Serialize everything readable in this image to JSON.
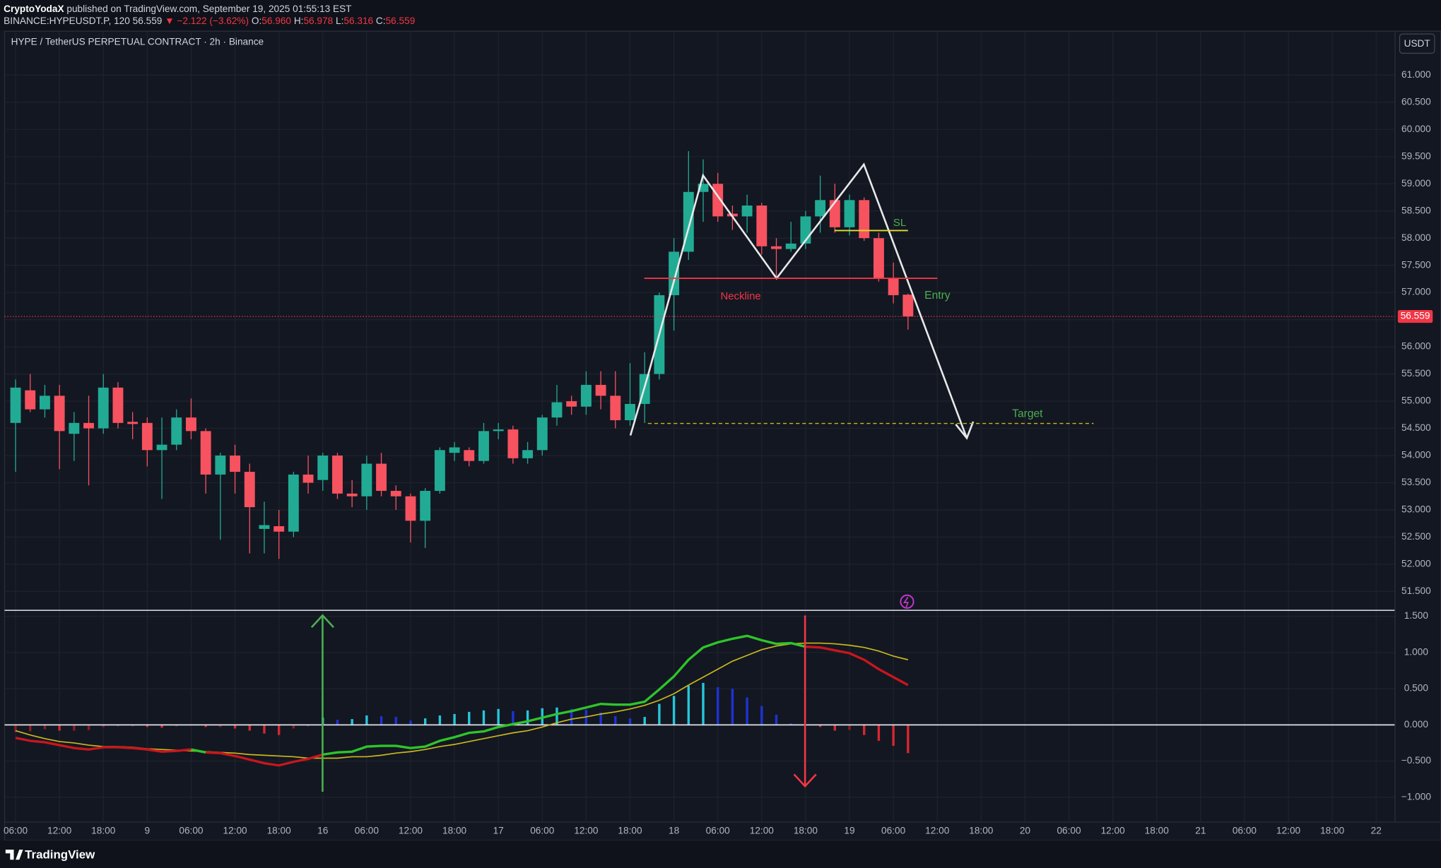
{
  "header": {
    "author": "CryptoYodaX",
    "published": "published on TradingView.com, September 19, 2025 01:55:13 EST",
    "symbol": "BINANCE:HYPEUSDT.P, 120",
    "last": "56.559",
    "change": "▼ −2.122 (−3.62%)",
    "ohlc": [
      {
        "label": "O:",
        "value": "56.960"
      },
      {
        "label": "H:",
        "value": "56.978"
      },
      {
        "label": "L:",
        "value": "56.316"
      },
      {
        "label": "C:",
        "value": "56.559"
      }
    ]
  },
  "annotations": {
    "neckline": "Neckline",
    "sl": "SL",
    "entry": "Entry",
    "target": "Target"
  },
  "footer": {
    "logo": "TradingView"
  },
  "chart_data": [
    {
      "type": "candlestick",
      "title": "HYPE / TetherUS PERPETUAL CONTRACT · 2h · Binance",
      "currency": "USDT",
      "up_color": "#22ab94",
      "down_color": "#f7525f",
      "grid": true,
      "x": [
        0,
        1,
        2,
        3,
        4,
        5,
        6,
        7,
        8,
        9,
        10,
        11,
        12,
        13,
        14,
        15,
        16,
        17,
        18,
        19,
        20,
        21,
        22,
        23,
        24,
        25,
        26,
        27,
        28,
        29,
        30,
        31,
        32,
        33,
        34,
        35,
        36,
        37,
        38,
        39,
        40,
        41,
        42,
        43,
        44,
        45,
        46,
        47,
        48,
        49,
        50,
        51,
        52,
        53,
        54,
        55,
        56,
        57,
        58,
        59,
        60,
        61
      ],
      "open": [
        54.6,
        55.2,
        54.85,
        55.1,
        54.4,
        54.6,
        54.5,
        55.25,
        54.62,
        54.6,
        54.1,
        54.2,
        54.7,
        54.45,
        53.65,
        54.0,
        53.7,
        52.65,
        52.7,
        52.6,
        53.65,
        53.55,
        54.0,
        53.3,
        53.25,
        53.85,
        53.35,
        53.25,
        52.8,
        53.35,
        54.05,
        54.1,
        53.9,
        54.45,
        54.48,
        53.95,
        54.1,
        54.7,
        55.0,
        54.9,
        55.3,
        55.1,
        54.65,
        54.95,
        55.5,
        56.95,
        57.75,
        58.85,
        59.0,
        58.45,
        58.4,
        58.6,
        57.85,
        57.8,
        57.9,
        58.4,
        58.7,
        58.2,
        58.7,
        58.0,
        57.25,
        56.96
      ],
      "high": [
        55.4,
        55.5,
        55.3,
        55.3,
        54.8,
        55.1,
        55.5,
        55.35,
        54.8,
        54.7,
        54.7,
        54.85,
        55.05,
        54.5,
        54.05,
        54.2,
        53.85,
        53.15,
        53.0,
        53.7,
        54.0,
        54.05,
        54.05,
        53.55,
        54.0,
        54.05,
        53.45,
        53.3,
        53.4,
        54.15,
        54.25,
        54.15,
        54.6,
        54.6,
        54.55,
        54.25,
        54.75,
        55.3,
        55.1,
        55.55,
        55.55,
        55.55,
        55.7,
        55.9,
        57.0,
        58.0,
        59.6,
        59.45,
        59.2,
        58.6,
        58.8,
        58.65,
        58.0,
        58.3,
        58.5,
        59.15,
        59.0,
        58.8,
        58.75,
        58.1,
        57.55,
        56.978
      ],
      "low": [
        53.7,
        54.8,
        54.7,
        53.75,
        53.9,
        53.45,
        54.4,
        54.5,
        54.3,
        53.8,
        53.2,
        54.1,
        54.3,
        53.3,
        52.45,
        53.3,
        52.2,
        52.2,
        52.1,
        52.5,
        53.3,
        53.35,
        53.2,
        53.05,
        53.0,
        53.25,
        53.0,
        52.4,
        52.3,
        53.3,
        53.9,
        53.8,
        53.85,
        54.3,
        53.85,
        53.85,
        54.0,
        54.55,
        54.75,
        54.75,
        54.85,
        54.5,
        54.55,
        54.6,
        55.4,
        56.3,
        57.6,
        58.3,
        58.3,
        58.15,
        58.1,
        57.7,
        57.3,
        57.75,
        57.8,
        58.1,
        58.1,
        58.05,
        57.95,
        57.2,
        56.8,
        56.316
      ],
      "close": [
        55.25,
        54.85,
        55.1,
        54.45,
        54.6,
        54.5,
        55.25,
        54.6,
        54.58,
        54.1,
        54.2,
        54.7,
        54.45,
        53.65,
        54.0,
        53.7,
        53.05,
        52.72,
        52.6,
        53.65,
        53.5,
        54.0,
        53.3,
        53.25,
        53.85,
        53.35,
        53.25,
        52.8,
        53.35,
        54.1,
        54.15,
        53.9,
        54.45,
        54.48,
        53.95,
        54.1,
        54.7,
        54.98,
        54.9,
        55.3,
        55.1,
        54.65,
        54.95,
        55.5,
        56.95,
        57.75,
        58.85,
        59.0,
        58.4,
        58.4,
        58.6,
        57.85,
        57.8,
        57.9,
        58.4,
        58.7,
        58.2,
        58.7,
        58.0,
        57.25,
        56.95,
        56.559
      ],
      "last_price": {
        "value": 56.559,
        "label": "56.559"
      },
      "last_price_color": "#f23645",
      "xlim": [
        -0.75,
        94.29
      ],
      "ylim": [
        51.16,
        61.79
      ],
      "xticks": [
        {
          "value": 0,
          "label": "06:00"
        },
        {
          "value": 3,
          "label": "12:00"
        },
        {
          "value": 6,
          "label": "18:00"
        },
        9,
        {
          "value": 12,
          "label": "06:00"
        },
        {
          "value": 15,
          "label": "12:00"
        },
        {
          "value": 18,
          "label": "18:00"
        },
        {
          "value": 21,
          "label": "16"
        },
        {
          "value": 24,
          "label": "06:00"
        },
        {
          "value": 27,
          "label": "12:00"
        },
        {
          "value": 30,
          "label": "18:00"
        },
        {
          "value": 33,
          "label": "17"
        },
        {
          "value": 36,
          "label": "06:00"
        },
        {
          "value": 39,
          "label": "12:00"
        },
        {
          "value": 42,
          "label": "18:00"
        },
        {
          "value": 45,
          "label": "18"
        },
        {
          "value": 48,
          "label": "06:00"
        },
        {
          "value": 51,
          "label": "12:00"
        },
        {
          "value": 54,
          "label": "18:00"
        },
        {
          "value": 57,
          "label": "19"
        },
        {
          "value": 60,
          "label": "06:00"
        },
        {
          "value": 63,
          "label": "12:00"
        },
        {
          "value": 66,
          "label": "18:00"
        },
        {
          "value": 69,
          "label": "20"
        },
        {
          "value": 72,
          "label": "06:00"
        },
        {
          "value": 75,
          "label": "12:00"
        },
        {
          "value": 78,
          "label": "18:00"
        },
        {
          "value": 81,
          "label": "21"
        },
        {
          "value": 84,
          "label": "06:00"
        },
        {
          "value": 87,
          "label": "12:00"
        },
        {
          "value": 90,
          "label": "18:00"
        },
        {
          "value": 93,
          "label": "22"
        }
      ],
      "yticks": [
        {
          "value": 51.5,
          "label": "51.500"
        },
        {
          "value": 52,
          "label": "52.000"
        },
        {
          "value": 52.5,
          "label": "52.500"
        },
        {
          "value": 53,
          "label": "53.000"
        },
        {
          "value": 53.5,
          "label": "53.500"
        },
        {
          "value": 54,
          "label": "54.000"
        },
        {
          "value": 54.5,
          "label": "54.500"
        },
        {
          "value": 55,
          "label": "55.000"
        },
        {
          "value": 55.5,
          "label": "55.500"
        },
        {
          "value": 56,
          "label": "56.000"
        },
        {
          "value": 56.5,
          "label": "56.500"
        },
        {
          "value": 57,
          "label": "57.000"
        },
        {
          "value": 57.5,
          "label": "57.500"
        },
        {
          "value": 58,
          "label": "58.000"
        },
        {
          "value": 58.5,
          "label": "58.500"
        },
        {
          "value": 59,
          "label": "59.000"
        },
        {
          "value": 59.5,
          "label": "59.500"
        },
        {
          "value": 60,
          "label": "60.000"
        },
        {
          "value": 60.5,
          "label": "60.500"
        },
        {
          "value": 61,
          "label": "61.000"
        }
      ]
    },
    {
      "type": "macd",
      "grid": true,
      "x": [
        0,
        1,
        2,
        3,
        4,
        5,
        6,
        7,
        8,
        9,
        10,
        11,
        12,
        13,
        14,
        15,
        16,
        17,
        18,
        19,
        20,
        21,
        22,
        23,
        24,
        25,
        26,
        27,
        28,
        29,
        30,
        31,
        32,
        33,
        34,
        35,
        36,
        37,
        38,
        39,
        40,
        41,
        42,
        43,
        44,
        45,
        46,
        47,
        48,
        49,
        50,
        51,
        52,
        53,
        54,
        55,
        56,
        57,
        58,
        59,
        60,
        61
      ],
      "macd": [
        -0.18,
        -0.22,
        -0.24,
        -0.28,
        -0.32,
        -0.34,
        -0.31,
        -0.31,
        -0.32,
        -0.34,
        -0.37,
        -0.36,
        -0.34,
        -0.38,
        -0.39,
        -0.43,
        -0.48,
        -0.53,
        -0.56,
        -0.51,
        -0.47,
        -0.41,
        -0.38,
        -0.37,
        -0.3,
        -0.29,
        -0.29,
        -0.32,
        -0.3,
        -0.22,
        -0.17,
        -0.11,
        -0.09,
        -0.03,
        0.01,
        0.05,
        0.1,
        0.15,
        0.19,
        0.24,
        0.29,
        0.28,
        0.28,
        0.32,
        0.49,
        0.67,
        0.9,
        1.07,
        1.14,
        1.19,
        1.23,
        1.17,
        1.12,
        1.13,
        1.08,
        1.07,
        1.03,
        0.99,
        0.9,
        0.77,
        0.66,
        0.55
      ],
      "signal": [
        -0.08,
        -0.14,
        -0.19,
        -0.23,
        -0.25,
        -0.28,
        -0.3,
        -0.3,
        -0.31,
        -0.33,
        -0.34,
        -0.35,
        -0.36,
        -0.37,
        -0.38,
        -0.39,
        -0.41,
        -0.42,
        -0.43,
        -0.44,
        -0.46,
        -0.46,
        -0.46,
        -0.44,
        -0.44,
        -0.42,
        -0.39,
        -0.37,
        -0.34,
        -0.3,
        -0.27,
        -0.23,
        -0.19,
        -0.15,
        -0.11,
        -0.08,
        -0.03,
        0.03,
        0.08,
        0.11,
        0.15,
        0.18,
        0.22,
        0.27,
        0.34,
        0.43,
        0.55,
        0.66,
        0.77,
        0.88,
        0.96,
        1.04,
        1.09,
        1.12,
        1.13,
        1.13,
        1.12,
        1.1,
        1.07,
        1.02,
        0.95,
        0.9
      ],
      "histogram": [
        -0.1,
        -0.09,
        -0.06,
        -0.08,
        -0.08,
        -0.07,
        -0.03,
        -0.02,
        -0.02,
        -0.03,
        -0.04,
        -0.02,
        -0.01,
        -0.03,
        -0.03,
        -0.05,
        -0.08,
        -0.12,
        -0.14,
        -0.05,
        -0.02,
        0.1,
        0.07,
        0.08,
        0.13,
        0.12,
        0.11,
        0.06,
        0.09,
        0.13,
        0.15,
        0.18,
        0.2,
        0.22,
        0.19,
        0.2,
        0.23,
        0.24,
        0.22,
        0.21,
        0.17,
        0.12,
        0.09,
        0.11,
        0.29,
        0.4,
        0.54,
        0.58,
        0.52,
        0.5,
        0.38,
        0.26,
        0.14,
        0.02,
        -0.01,
        -0.03,
        -0.08,
        -0.07,
        -0.14,
        -0.22,
        -0.29,
        -0.39
      ],
      "macd_up_color": "#2fc42a",
      "macd_down_color": "#c8161d",
      "signal_color": "#c9b81c",
      "hist_colors": {
        "pos_rising": "#26c6da",
        "pos_falling": "#1e33d4",
        "neg_falling": "#d8262f",
        "neg_rising": "#8a1c24"
      },
      "ylim": [
        -1.343,
        1.576
      ],
      "yticks": [
        {
          "value": -1,
          "label": "−1.000"
        },
        {
          "value": -0.5,
          "label": "−0.500"
        },
        {
          "value": 0,
          "label": "0.000"
        },
        {
          "value": 0.5,
          "label": "0.500"
        },
        {
          "value": 1,
          "label": "1.000"
        },
        {
          "value": 1.5,
          "label": "1.500"
        }
      ]
    }
  ]
}
